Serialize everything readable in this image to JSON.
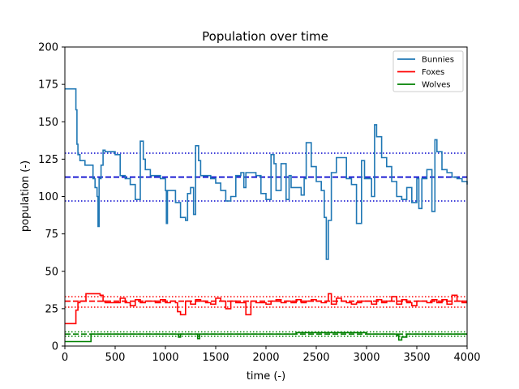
{
  "chart_data": {
    "type": "line",
    "title": "Population over time",
    "xlabel": "time (-)",
    "ylabel": "population (-)",
    "xlim": [
      0,
      4000
    ],
    "ylim": [
      0,
      200
    ],
    "xticks": [
      0,
      500,
      1000,
      1500,
      2000,
      2500,
      3000,
      3500,
      4000
    ],
    "yticks": [
      0,
      25,
      50,
      75,
      100,
      125,
      150,
      175,
      200
    ],
    "grid": false,
    "legend_position": "top-right",
    "series": [
      {
        "name": "Bunnies",
        "color": "#1f77b4",
        "x": [
          0,
          100,
          110,
          120,
          130,
          150,
          200,
          250,
          280,
          300,
          320,
          330,
          340,
          360,
          380,
          400,
          420,
          500,
          550,
          600,
          650,
          700,
          750,
          780,
          800,
          850,
          900,
          950,
          1000,
          1010,
          1020,
          1050,
          1100,
          1150,
          1200,
          1220,
          1250,
          1280,
          1300,
          1330,
          1350,
          1400,
          1450,
          1500,
          1550,
          1600,
          1650,
          1700,
          1750,
          1780,
          1800,
          1850,
          1900,
          1950,
          2000,
          2050,
          2080,
          2100,
          2150,
          2200,
          2230,
          2250,
          2300,
          2350,
          2380,
          2400,
          2450,
          2500,
          2550,
          2580,
          2600,
          2620,
          2650,
          2700,
          2750,
          2800,
          2850,
          2900,
          2950,
          2980,
          3000,
          3050,
          3080,
          3100,
          3150,
          3200,
          3250,
          3300,
          3350,
          3400,
          3450,
          3500,
          3520,
          3550,
          3600,
          3650,
          3680,
          3700,
          3750,
          3800,
          3850,
          3900,
          3950,
          4000
        ],
        "y": [
          172,
          172,
          158,
          135,
          128,
          124,
          121,
          121,
          112,
          106,
          100,
          80,
          112,
          121,
          131,
          130,
          130,
          128,
          114,
          112,
          108,
          98,
          137,
          125,
          118,
          114,
          114,
          112,
          104,
          82,
          104,
          104,
          96,
          86,
          84,
          102,
          106,
          88,
          134,
          124,
          114,
          114,
          112,
          109,
          104,
          97,
          100,
          114,
          116,
          106,
          116,
          116,
          114,
          102,
          98,
          128,
          122,
          104,
          122,
          98,
          114,
          106,
          106,
          101,
          112,
          136,
          120,
          110,
          104,
          86,
          58,
          84,
          116,
          126,
          126,
          112,
          108,
          82,
          124,
          112,
          112,
          100,
          148,
          140,
          126,
          120,
          110,
          100,
          98,
          106,
          96,
          112,
          92,
          112,
          118,
          90,
          138,
          130,
          118,
          116,
          113,
          112,
          110,
          108
        ]
      },
      {
        "name": "Foxes",
        "color": "#ff0000",
        "x": [
          0,
          100,
          110,
          130,
          150,
          200,
          210,
          250,
          300,
          350,
          380,
          400,
          450,
          500,
          550,
          600,
          650,
          700,
          750,
          800,
          850,
          900,
          950,
          1000,
          1050,
          1100,
          1120,
          1150,
          1200,
          1250,
          1300,
          1350,
          1400,
          1450,
          1500,
          1550,
          1600,
          1650,
          1700,
          1750,
          1800,
          1850,
          1900,
          1950,
          2000,
          2050,
          2100,
          2150,
          2200,
          2250,
          2300,
          2350,
          2400,
          2450,
          2500,
          2550,
          2600,
          2620,
          2650,
          2700,
          2750,
          2800,
          2850,
          2900,
          2950,
          3000,
          3050,
          3100,
          3150,
          3200,
          3250,
          3300,
          3350,
          3400,
          3450,
          3500,
          3550,
          3600,
          3650,
          3700,
          3750,
          3800,
          3850,
          3900,
          3950,
          4000
        ],
        "y": [
          15,
          15,
          24,
          29,
          30,
          30,
          35,
          35,
          35,
          34,
          30,
          29,
          29,
          29,
          32,
          29,
          27,
          31,
          29,
          30,
          30,
          29,
          31,
          29,
          30,
          29,
          23,
          21,
          30,
          28,
          31,
          30,
          29,
          28,
          32,
          30,
          25,
          30,
          29,
          29,
          21,
          30,
          29,
          29,
          28,
          30,
          31,
          29,
          30,
          29,
          31,
          29,
          30,
          31,
          30,
          29,
          30,
          35,
          28,
          32,
          30,
          29,
          28,
          29,
          30,
          30,
          28,
          31,
          29,
          30,
          33,
          28,
          31,
          29,
          27,
          30,
          30,
          29,
          31,
          29,
          31,
          28,
          34,
          30,
          29,
          29
        ]
      },
      {
        "name": "Wolves",
        "color": "#008000",
        "x": [
          0,
          200,
          240,
          260,
          300,
          500,
          1000,
          1100,
          1130,
          1150,
          1200,
          1300,
          1320,
          1340,
          1500,
          2000,
          2300,
          2500,
          2800,
          3000,
          3250,
          3300,
          3320,
          3350,
          3400,
          4000
        ],
        "y": [
          3,
          3,
          3,
          8,
          8,
          8,
          8,
          8,
          6,
          8,
          8,
          8,
          5,
          8,
          8,
          8,
          9,
          9,
          9,
          8,
          8,
          7,
          4,
          6,
          8,
          8
        ]
      }
    ],
    "reference_lines": [
      {
        "series": "Bunnies",
        "kind": "mean",
        "y": 113,
        "color": "#0000cd",
        "style": "dashed"
      },
      {
        "series": "Bunnies",
        "kind": "band",
        "y": 129,
        "color": "#0000cd",
        "style": "dotted"
      },
      {
        "series": "Bunnies",
        "kind": "band",
        "y": 97,
        "color": "#0000cd",
        "style": "dotted"
      },
      {
        "series": "Foxes",
        "kind": "mean",
        "y": 30,
        "color": "#ff0000",
        "style": "dashed"
      },
      {
        "series": "Foxes",
        "kind": "band",
        "y": 33,
        "color": "#ff0000",
        "style": "dotted"
      },
      {
        "series": "Foxes",
        "kind": "band",
        "y": 26,
        "color": "#ff0000",
        "style": "dotted"
      },
      {
        "series": "Wolves",
        "kind": "mean",
        "y": 8,
        "color": "#008000",
        "style": "dashed"
      },
      {
        "series": "Wolves",
        "kind": "band",
        "y": 9.5,
        "color": "#008000",
        "style": "dotted"
      },
      {
        "series": "Wolves",
        "kind": "band",
        "y": 6.5,
        "color": "#008000",
        "style": "dotted"
      }
    ]
  }
}
